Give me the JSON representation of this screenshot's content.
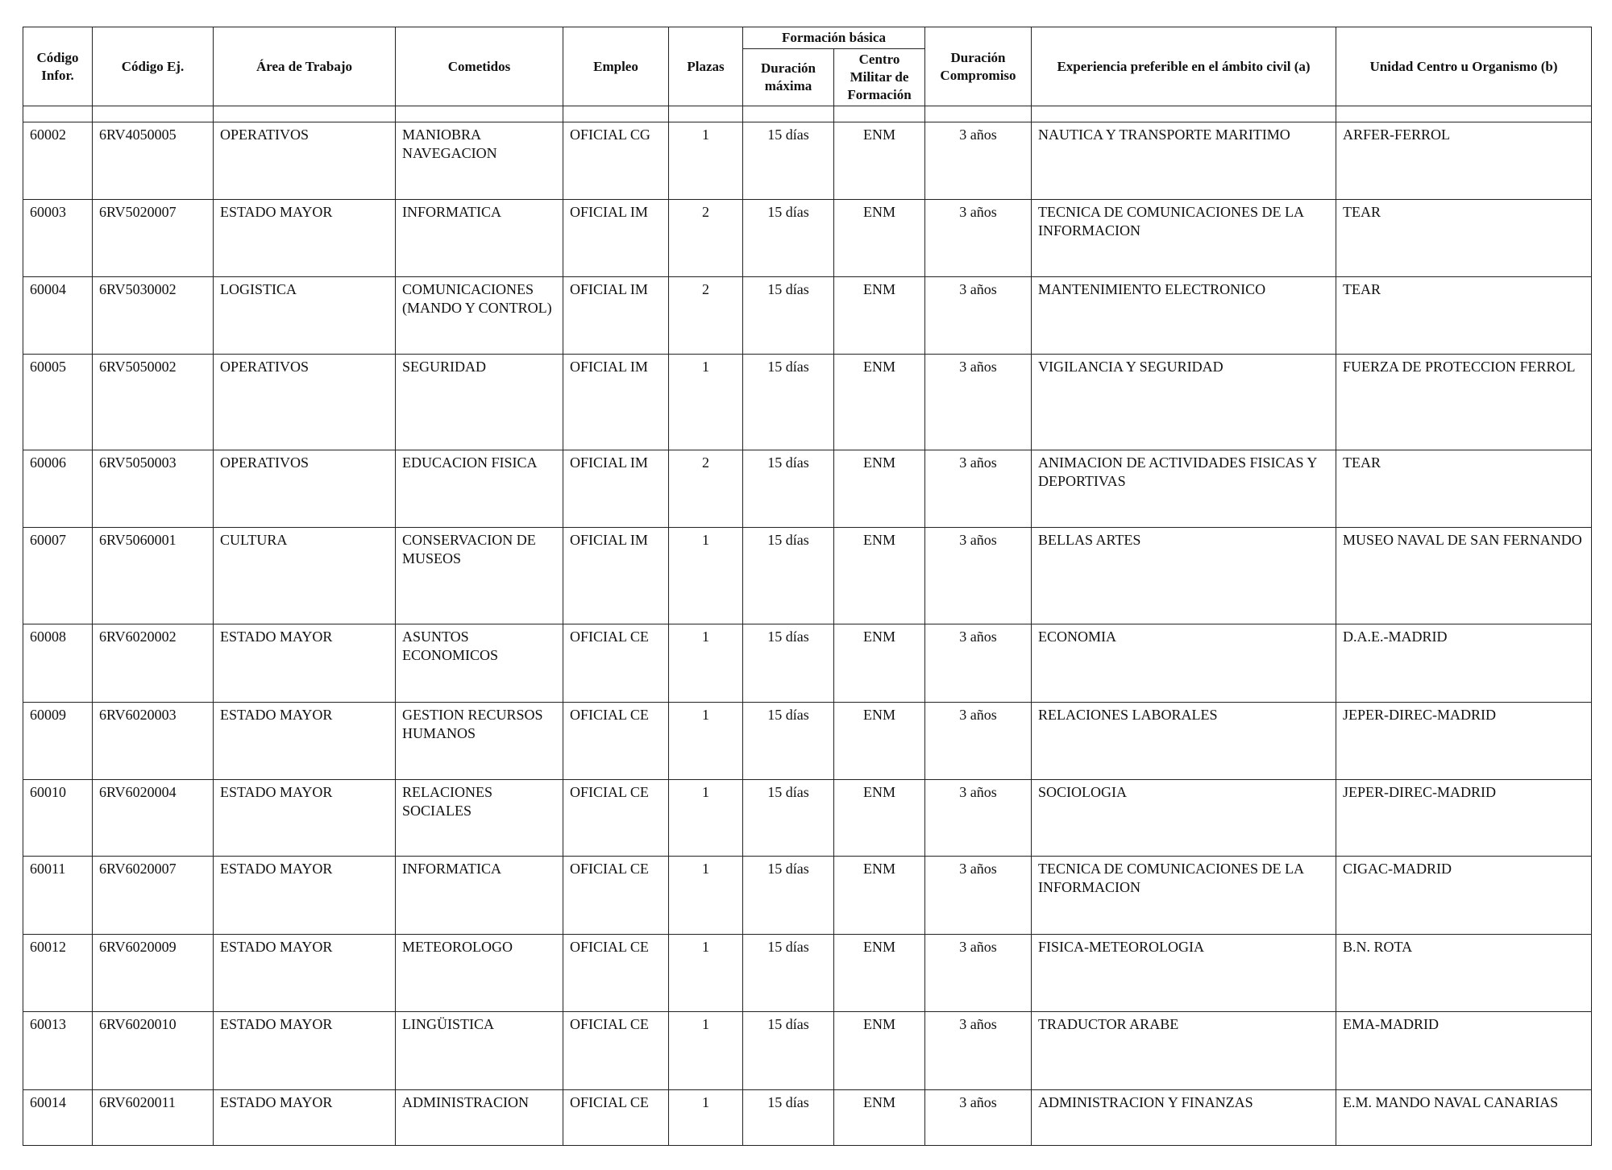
{
  "headers": {
    "codigo_infor": "Código Infor.",
    "codigo_ej": "Código Ej.",
    "area": "Área de Trabajo",
    "cometidos": "Cometidos",
    "empleo": "Empleo",
    "plazas": "Plazas",
    "formacion_basica": "Formación básica",
    "duracion_maxima": "Duración máxima",
    "centro_militar": "Centro Militar de Formación",
    "duracion_compromiso": "Duración Compromiso",
    "experiencia": "Experiencia preferible en el ámbito civil (a)",
    "unidad": "Unidad Centro u Organismo (b)"
  },
  "rows": [
    [
      "60002",
      "6RV4050005",
      "OPERATIVOS",
      "MANIOBRA NAVEGACION",
      "OFICIAL CG",
      "1",
      "15 días",
      "ENM",
      "3 años",
      "NAUTICA Y TRANSPORTE MARITIMO",
      "ARFER-FERROL"
    ],
    [
      "60003",
      "6RV5020007",
      "ESTADO MAYOR",
      "INFORMATICA",
      "OFICIAL IM",
      "2",
      "15 días",
      "ENM",
      "3 años",
      "TECNICA DE COMUNICACIONES DE LA INFORMACION",
      "TEAR"
    ],
    [
      "60004",
      "6RV5030002",
      "LOGISTICA",
      "COMUNICACIONES (MANDO Y CONTROL)",
      "OFICIAL IM",
      "2",
      "15 días",
      "ENM",
      "3 años",
      "MANTENIMIENTO ELECTRONICO",
      "TEAR"
    ],
    [
      "60005",
      "6RV5050002",
      "OPERATIVOS",
      "SEGURIDAD",
      "OFICIAL IM",
      "1",
      "15 días",
      "ENM",
      "3 años",
      "VIGILANCIA Y SEGURIDAD",
      "FUERZA DE PROTECCION FERROL"
    ],
    [
      "60006",
      "6RV5050003",
      "OPERATIVOS",
      "EDUCACION FISICA",
      "OFICIAL IM",
      "2",
      "15 días",
      "ENM",
      "3 años",
      "ANIMACION DE ACTIVIDADES FISICAS Y DEPORTIVAS",
      "TEAR"
    ],
    [
      "60007",
      "6RV5060001",
      "CULTURA",
      "CONSERVACION DE MUSEOS",
      "OFICIAL IM",
      "1",
      "15 días",
      "ENM",
      "3 años",
      "BELLAS ARTES",
      "MUSEO NAVAL DE SAN FERNANDO"
    ],
    [
      "60008",
      "6RV6020002",
      "ESTADO MAYOR",
      "ASUNTOS ECONOMICOS",
      "OFICIAL CE",
      "1",
      "15 días",
      "ENM",
      "3 años",
      "ECONOMIA",
      "D.A.E.-MADRID"
    ],
    [
      "60009",
      "6RV6020003",
      "ESTADO MAYOR",
      "GESTION RECURSOS HUMANOS",
      "OFICIAL CE",
      "1",
      "15 días",
      "ENM",
      "3 años",
      "RELACIONES LABORALES",
      "JEPER-DIREC-MADRID"
    ],
    [
      "60010",
      "6RV6020004",
      "ESTADO MAYOR",
      "RELACIONES SOCIALES",
      "OFICIAL CE",
      "1",
      "15 días",
      "ENM",
      "3 años",
      "SOCIOLOGIA",
      "JEPER-DIREC-MADRID"
    ],
    [
      "60011",
      "6RV6020007",
      "ESTADO MAYOR",
      "INFORMATICA",
      "OFICIAL CE",
      "1",
      "15 días",
      "ENM",
      "3 años",
      "TECNICA DE COMUNICACIONES DE LA INFORMACION",
      "CIGAC-MADRID"
    ],
    [
      "60012",
      "6RV6020009",
      "ESTADO MAYOR",
      "METEOROLOGO",
      "OFICIAL CE",
      "1",
      "15 días",
      "ENM",
      "3 años",
      "FISICA-METEOROLOGIA",
      "B.N. ROTA"
    ],
    [
      "60013",
      "6RV6020010",
      "ESTADO MAYOR",
      "LINGÜISTICA",
      "OFICIAL CE",
      "1",
      "15 días",
      "ENM",
      "3 años",
      "TRADUCTOR ARABE",
      "EMA-MADRID"
    ],
    [
      "60014",
      "6RV6020011",
      "ESTADO MAYOR",
      "ADMINISTRACION",
      "OFICIAL CE",
      "1",
      "15 días",
      "ENM",
      "3 años",
      "ADMINISTRACION Y FINANZAS",
      "E.M. MANDO NAVAL CANARIAS"
    ]
  ]
}
